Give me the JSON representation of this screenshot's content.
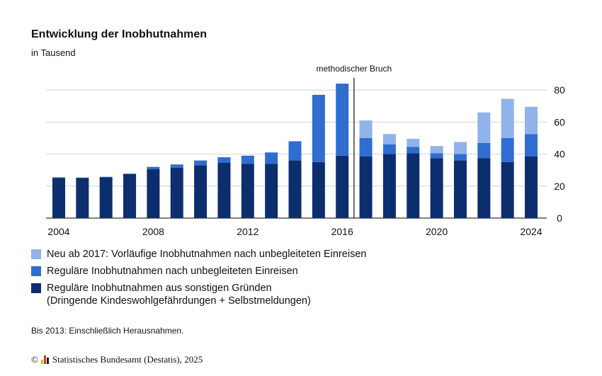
{
  "header": {
    "title": "Entwicklung der Inobhutnahmen",
    "subtitle": "in Tausend"
  },
  "chart_data": {
    "type": "bar",
    "stacked": true,
    "x": [
      2004,
      2005,
      2006,
      2007,
      2008,
      2009,
      2010,
      2011,
      2012,
      2013,
      2014,
      2015,
      2016,
      2017,
      2018,
      2019,
      2020,
      2021,
      2022,
      2023,
      2024
    ],
    "x_tick_labels": [
      "2004",
      "2008",
      "2012",
      "2016",
      "2020",
      "2024"
    ],
    "x_tick_values": [
      2004,
      2008,
      2012,
      2016,
      2020,
      2024
    ],
    "y_ticks": [
      "0",
      "20",
      "40",
      "60",
      "80"
    ],
    "y_tick_values": [
      0,
      20,
      40,
      60,
      80
    ],
    "ylim": [
      0,
      92
    ],
    "grid": true,
    "y_axis_position": "right",
    "series": [
      {
        "name": "Reguläre Inobhutnahmen aus sonstigen Gründen",
        "color": "#0d2e6e",
        "values": [
          25,
          25,
          25.5,
          27.5,
          30.5,
          31.5,
          33,
          34.5,
          34,
          34,
          36,
          35,
          39,
          38.5,
          40,
          40.5,
          37.5,
          36,
          37.5,
          35,
          38.5
        ]
      },
      {
        "name": "Reguläre Inobhutnahmen nach unbegleiteten Einreisen",
        "color": "#2f6dd0",
        "values": [
          0.5,
          0.3,
          0.3,
          0.3,
          1.5,
          2,
          3,
          3.5,
          5,
          7,
          12,
          42,
          45,
          11.5,
          6,
          4,
          3,
          4,
          9.5,
          15,
          14
        ]
      },
      {
        "name": "Neu ab 2017: Vorläufige Inobhutnahmen nach unbegleiteten Einreisen",
        "color": "#8fb3ea",
        "values": [
          0,
          0,
          0,
          0,
          0,
          0,
          0,
          0,
          0,
          0,
          0,
          0,
          0,
          11,
          6.5,
          5,
          4.5,
          7.5,
          19,
          24.5,
          17
        ]
      }
    ],
    "annotations": [
      {
        "text": "methodischer Bruch",
        "x": 2016.5
      }
    ]
  },
  "legend": {
    "items": [
      {
        "label": "Neu ab 2017: Vorläufige Inobhutnahmen nach unbegleiteten Einreisen",
        "color": "#8fb3ea"
      },
      {
        "label": "Reguläre Inobhutnahmen nach unbegleiteten Einreisen",
        "color": "#2f6dd0"
      },
      {
        "label": "Reguläre Inobhutnahmen aus sonstigen Gründen",
        "label2": "(Dringende Kindeswohlgefährdungen + Selbstmeldungen)",
        "color": "#0d2e6e"
      }
    ]
  },
  "footnote": "Bis 2013: Einschließlich Herausnahmen.",
  "source": {
    "copyright": "©",
    "text": "Statistisches Bundesamt (Destatis), 2025",
    "logo_colors": [
      "#e6b800",
      "#c0392b",
      "#1a1a1a"
    ]
  }
}
